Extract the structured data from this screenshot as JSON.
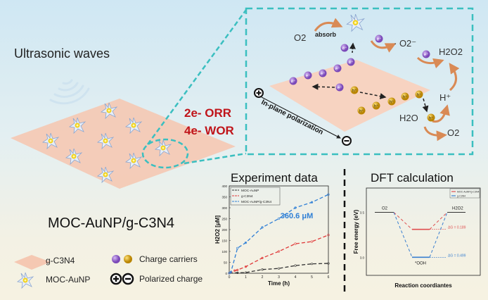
{
  "left": {
    "ultrasonic_label": "Ultrasonic waves",
    "material_label": "MOC-AuNP/g-C3N4",
    "reactions": [
      "2e- ORR",
      "4e- WOR"
    ]
  },
  "inset": {
    "o2_label": "O2",
    "absorb_label": "absorb",
    "superoxide_label": "· O2⁻",
    "h2o2_label": "H2O2",
    "hplus_label": "H⁺",
    "h2o_label": "H2O",
    "o2_out_label": "O2",
    "polarization_label": "In-plane polarization",
    "electron_label": "e⁻",
    "hole_label": "h⁺"
  },
  "legend": {
    "items": [
      {
        "label": "g-C3N4"
      },
      {
        "label": "Charge carriers"
      },
      {
        "label": "MOC-AuNP"
      },
      {
        "label": "Polarized charge"
      }
    ]
  },
  "colors": {
    "electron": "#8e5fc8",
    "hole": "#d4a017",
    "teal": "#3bbfc0",
    "red": "#c0141a",
    "blue": "#2f7fd6",
    "arrow": "#d98a55"
  },
  "chart_data": [
    {
      "type": "line",
      "title": "Experiment data",
      "xlabel": "Time (h)",
      "ylabel": "H2O2 [μM]",
      "xlim": [
        0,
        6
      ],
      "ylim": [
        0,
        400
      ],
      "xticks": [
        0,
        1,
        2,
        3,
        4,
        5,
        6
      ],
      "yticks": [
        0,
        50,
        100,
        150,
        200,
        250,
        300,
        350,
        400
      ],
      "annotation": "360.6 μM",
      "legend_position": "top-left",
      "series": [
        {
          "name": "MOC-AuNP",
          "color": "#333333",
          "x": [
            0,
            0.5,
            1,
            2,
            3,
            4,
            5,
            6
          ],
          "y": [
            0,
            2,
            3,
            17,
            22,
            35,
            43,
            45
          ]
        },
        {
          "name": "g-C3N4",
          "color": "#e03a3a",
          "x": [
            0,
            0.33,
            0.5,
            1,
            2,
            3,
            4,
            5,
            6
          ],
          "y": [
            0,
            12,
            15,
            30,
            70,
            100,
            135,
            145,
            175
          ]
        },
        {
          "name": "MOC-AuNP/g-C3N4",
          "color": "#2f7fd6",
          "x": [
            0,
            0.1,
            0.5,
            1,
            2,
            3,
            4,
            5,
            6
          ],
          "y": [
            0,
            5,
            115,
            140,
            210,
            250,
            300,
            325,
            360.6
          ]
        }
      ]
    },
    {
      "type": "line",
      "title": "DFT calculation",
      "xlabel": "Reaction coordiantes",
      "ylabel": "Free energy (eV)",
      "ylim": [
        2.8,
        3.77
      ],
      "yticks": [
        3.0,
        3.5
      ],
      "states": [
        "O2",
        "*OOH",
        "H2O2"
      ],
      "legend_position": "top-right",
      "series": [
        {
          "name": "MOC-AuNP/g-C3N4",
          "color": "#e05050",
          "levels": [
            3.5,
            3.311,
            3.5
          ],
          "delta_label": "ΔG = 0.189"
        },
        {
          "name": "g-C3N4",
          "color": "#3a7fd0",
          "levels": [
            3.5,
            3.001,
            3.5
          ],
          "delta_label": "ΔG = 0.499"
        }
      ]
    }
  ]
}
